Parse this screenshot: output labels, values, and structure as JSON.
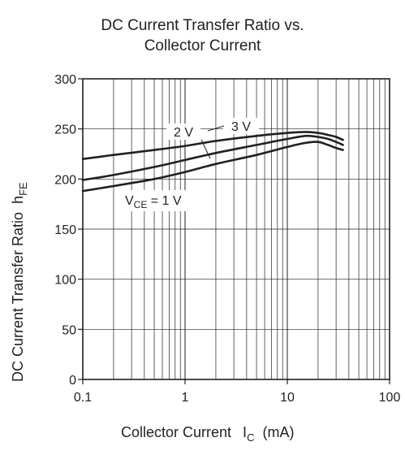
{
  "chart_data": {
    "type": "line",
    "title_line1": "DC Current Transfer Ratio vs.",
    "title_line2": "Collector Current",
    "ylabel": "DC Current Transfer Ratio",
    "ylabel_symbol": "h",
    "ylabel_symbol_sub": "FE",
    "xlabel": "Collector Current",
    "xlabel_symbol": "I",
    "xlabel_symbol_sub": "C",
    "xlabel_unit": "(mA)",
    "x_scale": "log",
    "xlim": [
      0.1,
      100
    ],
    "ylim": [
      0,
      300
    ],
    "x_ticks": [
      "0.1",
      "1",
      "10",
      "100"
    ],
    "y_ticks": [
      "0",
      "50",
      "100",
      "150",
      "200",
      "250",
      "300"
    ],
    "grid": true,
    "series": [
      {
        "name": "3 V",
        "x": [
          0.1,
          0.2,
          0.5,
          1,
          2,
          5,
          10,
          15,
          20,
          25,
          30,
          35
        ],
        "values": [
          220,
          224,
          229,
          233,
          238,
          243,
          246,
          247,
          246,
          244,
          242,
          239
        ]
      },
      {
        "name": "2 V",
        "x": [
          0.1,
          0.2,
          0.5,
          1,
          2,
          5,
          10,
          15,
          20,
          25,
          30,
          35
        ],
        "values": [
          199,
          204,
          212,
          219,
          226,
          234,
          240,
          243,
          242,
          240,
          237,
          234
        ]
      },
      {
        "name": "V_CE = 1 V",
        "x": [
          0.1,
          0.2,
          0.5,
          1,
          2,
          5,
          10,
          15,
          20,
          25,
          30,
          35
        ],
        "values": [
          188,
          193,
          200,
          207,
          215,
          224,
          232,
          236,
          237,
          234,
          231,
          229
        ]
      }
    ],
    "labels": {
      "v3": "3 V",
      "v2": "2 V",
      "v1_prefix": "V",
      "v1_sub": "CE",
      "v1_suffix": " = 1 V"
    }
  }
}
